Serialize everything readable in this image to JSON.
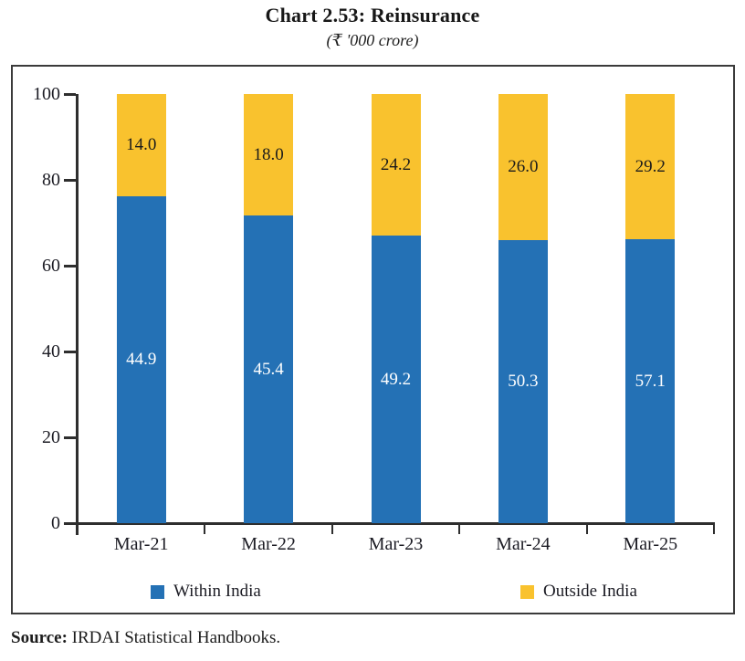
{
  "header": {
    "title": "Chart 2.53: Reinsurance",
    "subtitle": "(₹ '000 crore)"
  },
  "chart_data": {
    "type": "bar",
    "variant": "stacked-100-percent",
    "title": "Chart 2.53: Reinsurance",
    "subtitle": "(₹ '000 crore)",
    "categories": [
      "Mar-21",
      "Mar-22",
      "Mar-23",
      "Mar-24",
      "Mar-25"
    ],
    "series": [
      {
        "name": "Within India",
        "color": "#2471B5",
        "label_color": "#ffffff",
        "values": [
          44.9,
          45.4,
          49.2,
          50.3,
          57.1
        ]
      },
      {
        "name": "Outside India",
        "color": "#F9C22E",
        "label_color": "#1b1b1b",
        "values": [
          14.0,
          18.0,
          24.2,
          26.0,
          29.2
        ]
      }
    ],
    "ylabel": "",
    "xlabel": "",
    "ylim": [
      0,
      100
    ],
    "yticks": [
      0,
      20,
      40,
      60,
      80,
      100
    ],
    "grid": false,
    "legend_position": "bottom-inside",
    "bar_labels_show_absolute_values": true
  },
  "source": {
    "label": "Source:",
    "text": " IRDAI Statistical Handbooks."
  },
  "colors": {
    "within_india": "#2471B5",
    "outside_india": "#F9C22E",
    "axis": "#2e2e2e",
    "frame_border": "#3b3b3b",
    "text": "#1c1c24"
  }
}
